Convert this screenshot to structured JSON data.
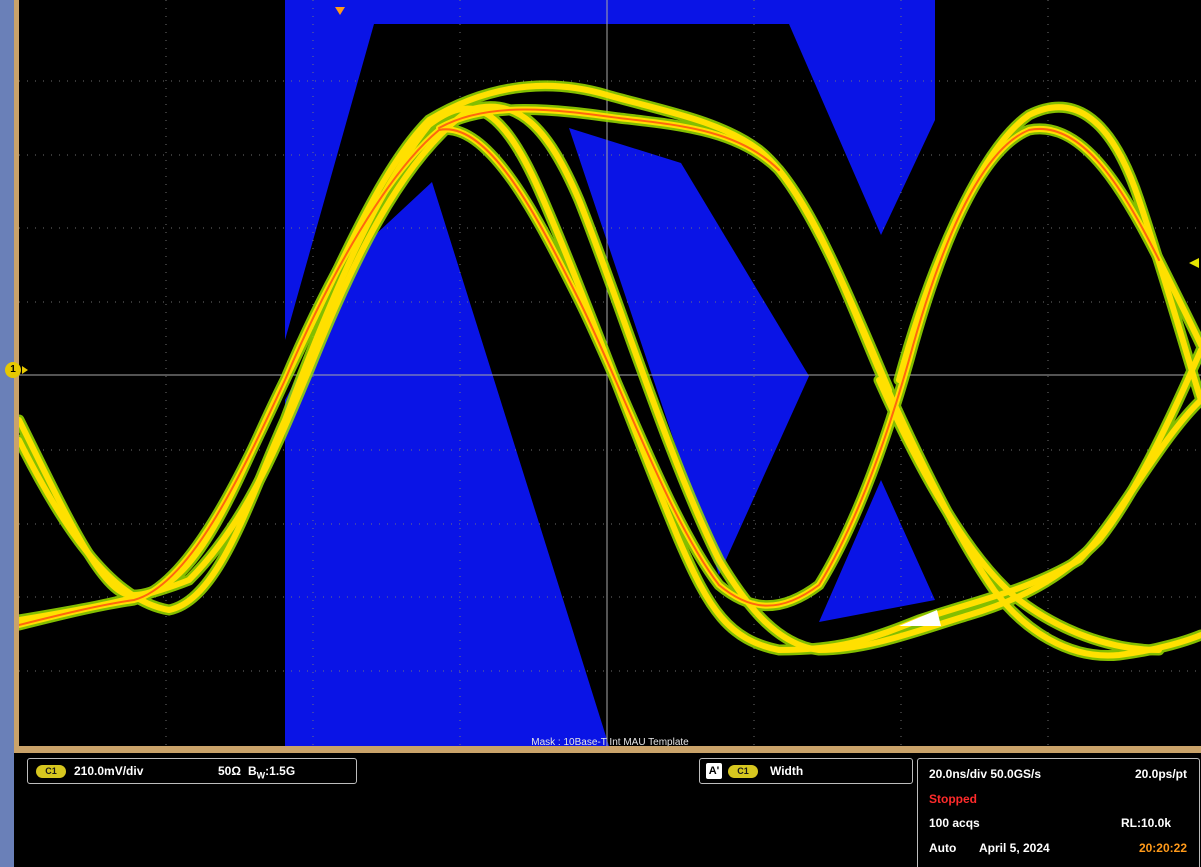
{
  "screen": {
    "mask_label": "Mask : 10Base-T Int MAU Template",
    "channel_marker": "1",
    "colors": {
      "mask": "#0a14e6",
      "grid": "#7a7a7a",
      "trace_outer": "#9be000",
      "trace_mid": "#ffe000",
      "trace_core": "#ff5a10"
    }
  },
  "channel": {
    "badge": "C1",
    "scale": "210.0mV/div",
    "impedance": "50Ω",
    "bandwidth": "B",
    "bandwidth_sub": "W",
    "bandwidth_val": ":1.5G"
  },
  "measurement": {
    "ref_badge": "A'",
    "badge": "C1",
    "name": "Width"
  },
  "timebase": {
    "scale": "20.0ns/div 50.0GS/s",
    "resolution": "20.0ps/pt",
    "state": "Stopped",
    "acqs": "100 acqs",
    "record_length": "RL:10.0k",
    "mode": "Auto",
    "date": "April 5, 2024",
    "time": "20:20:22"
  }
}
